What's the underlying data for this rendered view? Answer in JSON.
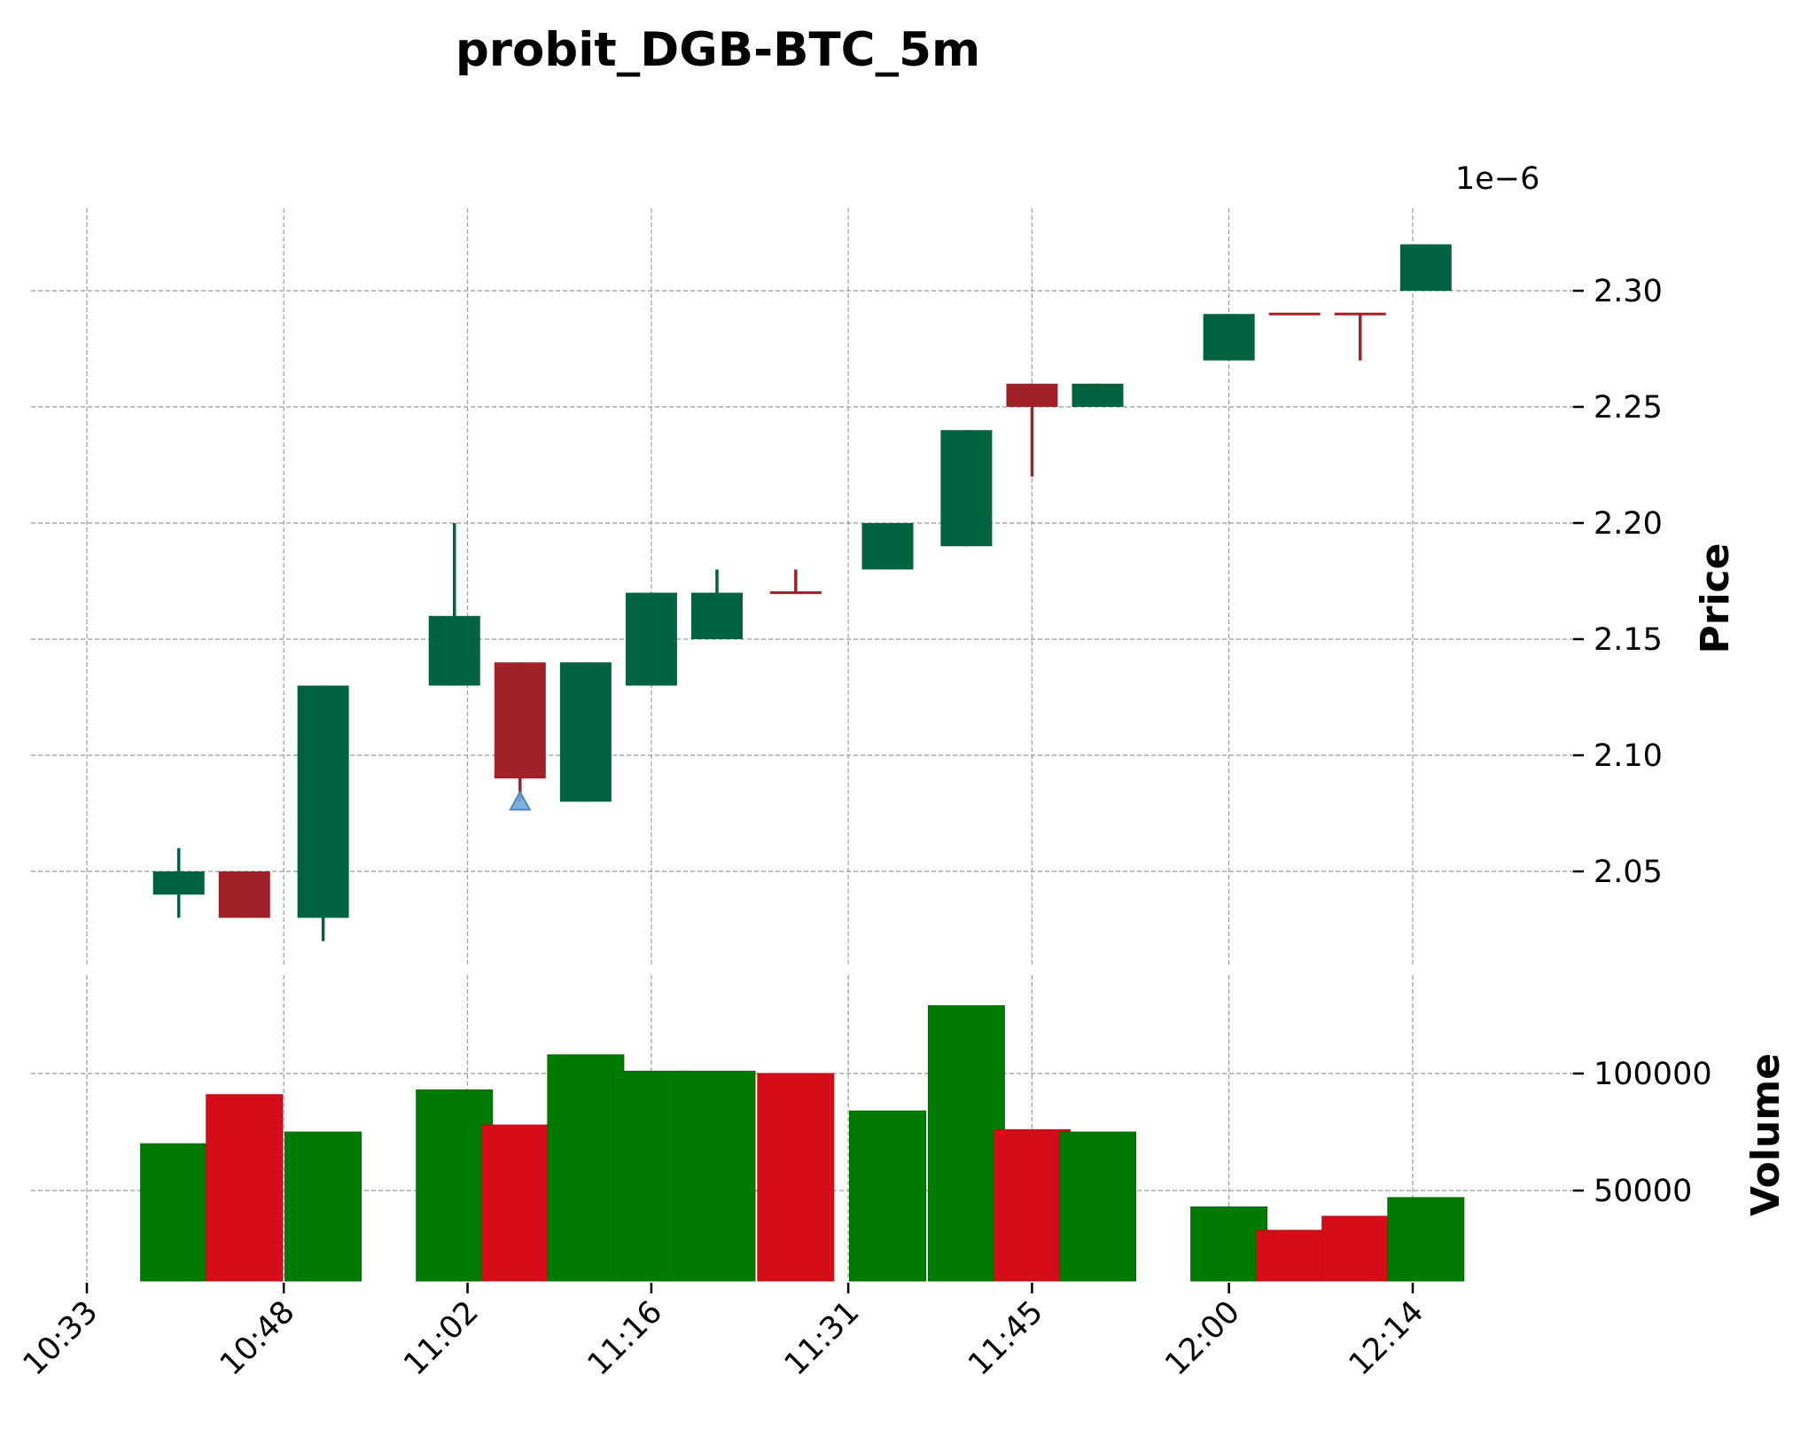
{
  "chart_data": {
    "type": "candlestick",
    "title": "probit_DGB-BTC_5m",
    "price_multiplier_label": "1e−6",
    "price_ylabel": "Price",
    "volume_ylabel": "Volume",
    "price_ylim": [
      2.0,
      2.33
    ],
    "volume_ylim": [
      10000,
      130000
    ],
    "grid": true,
    "x_tick_labels": [
      "10:33",
      "10:48",
      "11:02",
      "11:16",
      "11:31",
      "11:45",
      "12:00",
      "12:14"
    ],
    "price_tick_labels": [
      "2.05",
      "2.10",
      "2.15",
      "2.20",
      "2.25",
      "2.30"
    ],
    "price_ticks": [
      2.05,
      2.1,
      2.15,
      2.2,
      2.25,
      2.3
    ],
    "volume_tick_labels": [
      "50000",
      "100000"
    ],
    "volume_ticks": [
      50000,
      100000
    ],
    "colors": {
      "candle_up": "#006340",
      "candle_down": "#a02128",
      "volume_up": "#007a00",
      "volume_down": "#d50d18",
      "marker": "#6fa8d6",
      "grid": "#999999"
    },
    "candles": [
      {
        "time": "10:40",
        "open": 2.04,
        "high": 2.06,
        "low": 2.03,
        "close": 2.05,
        "volume": 70000,
        "direction": "up"
      },
      {
        "time": "10:45",
        "open": 2.05,
        "high": 2.05,
        "low": 2.03,
        "close": 2.03,
        "volume": 91000,
        "direction": "down"
      },
      {
        "time": "10:51",
        "open": 2.03,
        "high": 2.13,
        "low": 2.02,
        "close": 2.13,
        "volume": 75000,
        "direction": "up"
      },
      {
        "time": "11:01",
        "open": 2.13,
        "high": 2.2,
        "low": 2.13,
        "close": 2.16,
        "volume": 93000,
        "direction": "up"
      },
      {
        "time": "11:06",
        "open": 2.14,
        "high": 2.14,
        "low": 2.08,
        "close": 2.09,
        "volume": 78000,
        "direction": "down"
      },
      {
        "time": "11:11",
        "open": 2.08,
        "high": 2.14,
        "low": 2.08,
        "close": 2.14,
        "volume": 108000,
        "direction": "up"
      },
      {
        "time": "11:16",
        "open": 2.13,
        "high": 2.17,
        "low": 2.13,
        "close": 2.17,
        "volume": 101000,
        "direction": "up"
      },
      {
        "time": "11:21",
        "open": 2.15,
        "high": 2.18,
        "low": 2.15,
        "close": 2.17,
        "volume": 101000,
        "direction": "up"
      },
      {
        "time": "11:27",
        "open": 2.17,
        "high": 2.18,
        "low": 2.17,
        "close": 2.17,
        "volume": 100000,
        "direction": "down"
      },
      {
        "time": "11:34",
        "open": 2.18,
        "high": 2.2,
        "low": 2.18,
        "close": 2.2,
        "volume": 84000,
        "direction": "up"
      },
      {
        "time": "11:40",
        "open": 2.19,
        "high": 2.24,
        "low": 2.19,
        "close": 2.24,
        "volume": 129000,
        "direction": "up"
      },
      {
        "time": "11:45",
        "open": 2.26,
        "high": 2.26,
        "low": 2.22,
        "close": 2.25,
        "volume": 76000,
        "direction": "down"
      },
      {
        "time": "11:50",
        "open": 2.25,
        "high": 2.26,
        "low": 2.25,
        "close": 2.26,
        "volume": 75000,
        "direction": "up"
      },
      {
        "time": "12:00",
        "open": 2.27,
        "high": 2.29,
        "low": 2.27,
        "close": 2.29,
        "volume": 43000,
        "direction": "up"
      },
      {
        "time": "12:05",
        "open": 2.29,
        "high": 2.29,
        "low": 2.29,
        "close": 2.29,
        "volume": 33000,
        "direction": "down"
      },
      {
        "time": "12:10",
        "open": 2.29,
        "high": 2.29,
        "low": 2.27,
        "close": 2.29,
        "volume": 39000,
        "direction": "down"
      },
      {
        "time": "12:15",
        "open": 2.3,
        "high": 2.32,
        "low": 2.3,
        "close": 2.32,
        "volume": 47000,
        "direction": "up"
      }
    ],
    "annotations": [
      {
        "type": "triangle-up-marker",
        "time": "11:06",
        "price": 2.08
      }
    ]
  }
}
